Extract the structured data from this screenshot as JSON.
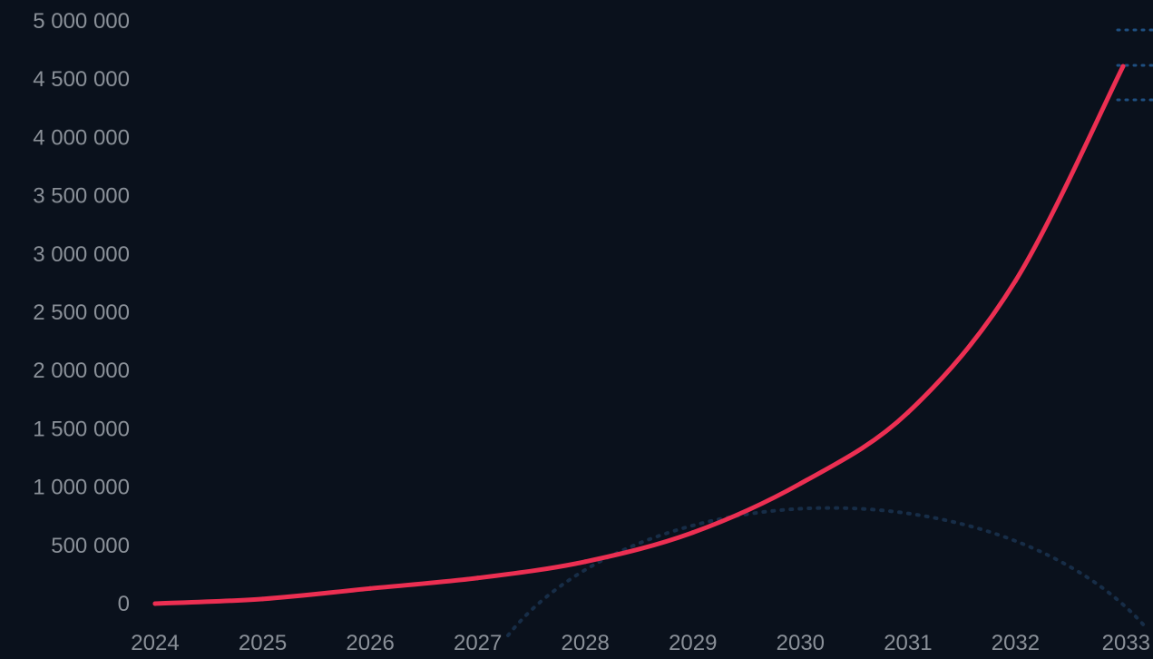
{
  "chart_data": {
    "type": "line",
    "title": "",
    "xlabel": "",
    "ylabel": "",
    "x": [
      2024,
      2025,
      2026,
      2027,
      2028,
      2029,
      2030,
      2031,
      2032,
      2033
    ],
    "x_tick_labels": [
      "2024",
      "2025",
      "2026",
      "2027",
      "2028",
      "2029",
      "2030",
      "2031",
      "2032",
      "2033"
    ],
    "y_tick_values": [
      0,
      500000,
      1000000,
      1500000,
      2000000,
      2500000,
      3000000,
      3500000,
      4000000,
      4500000,
      5000000
    ],
    "y_tick_labels": [
      "0",
      "500 000",
      "1 000 000",
      "1 500 000",
      "2 000 000",
      "2 500 000",
      "3 000 000",
      "3 500 000",
      "4 000 000",
      "4 500 000",
      "5 000 000"
    ],
    "ylim": [
      0,
      5000000
    ],
    "grid": false,
    "series": [
      {
        "values": [
          0,
          40000,
          130000,
          220000,
          360000,
          610000,
          1030000,
          1640000,
          2770000,
          4610000
        ],
        "color": "#ec2f52"
      }
    ]
  },
  "colors": {
    "background": "#0a111c",
    "tick_label": "#8a9098",
    "line": "#ec2f52",
    "decoration": "#1a3552"
  }
}
